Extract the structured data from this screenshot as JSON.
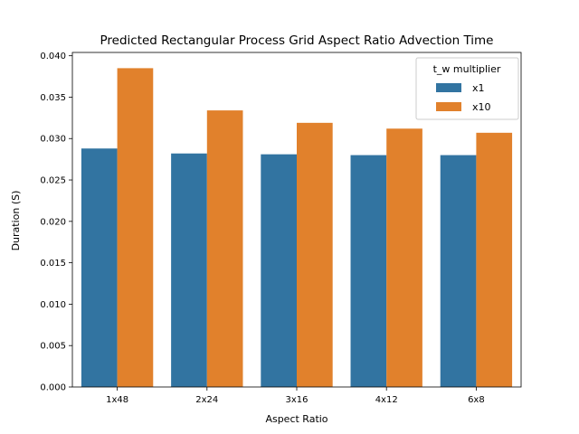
{
  "chart_data": {
    "type": "bar",
    "title": "Predicted Rectangular Process Grid Aspect Ratio Advection Time",
    "xlabel": "Aspect Ratio",
    "ylabel": "Duration (S)",
    "categories": [
      "1x48",
      "2x24",
      "3x16",
      "4x12",
      "6x8"
    ],
    "series": [
      {
        "name": "x1",
        "color": "#3274a1",
        "values": [
          0.0288,
          0.0282,
          0.0281,
          0.028,
          0.028
        ]
      },
      {
        "name": "x10",
        "color": "#e1812c",
        "values": [
          0.0385,
          0.0334,
          0.0319,
          0.0312,
          0.0307
        ]
      }
    ],
    "ylim": [
      0,
      0.0404
    ],
    "yticks": [
      0.0,
      0.005,
      0.01,
      0.015,
      0.02,
      0.025,
      0.03,
      0.035,
      0.04
    ],
    "ytick_labels": [
      "0.000",
      "0.005",
      "0.010",
      "0.015",
      "0.020",
      "0.025",
      "0.030",
      "0.035",
      "0.040"
    ],
    "legend": {
      "title": "t_w multiplier",
      "position": "top-right"
    },
    "grid": false
  }
}
